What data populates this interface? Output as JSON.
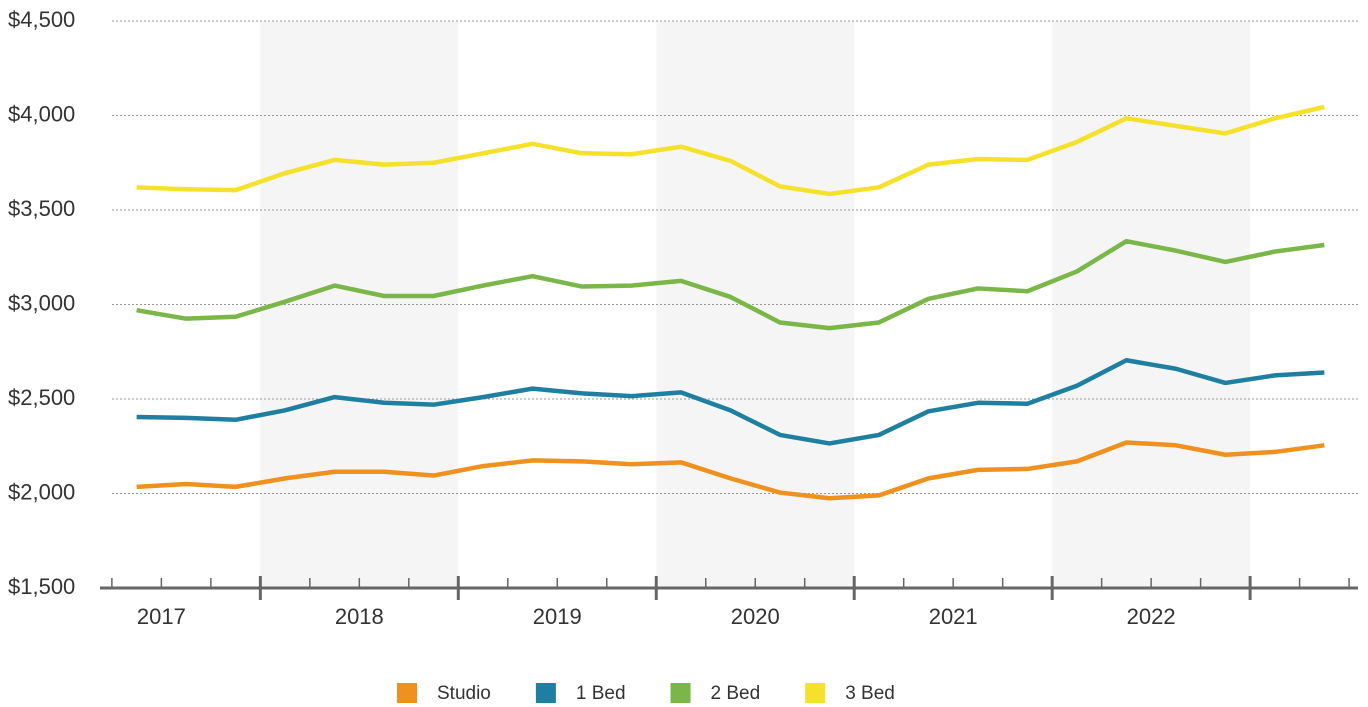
{
  "chart_data": {
    "type": "line",
    "x": [
      2017.375,
      2017.625,
      2017.875,
      2018.125,
      2018.375,
      2018.625,
      2018.875,
      2019.125,
      2019.375,
      2019.625,
      2019.875,
      2020.125,
      2020.375,
      2020.625,
      2020.875,
      2021.125,
      2021.375,
      2021.625,
      2021.875,
      2022.125,
      2022.375,
      2022.625,
      2022.875,
      2023.125,
      2023.375
    ],
    "xlim": [
      2017.19,
      2023.545
    ],
    "xticks": [
      {
        "value": 2017.5,
        "label": "2017"
      },
      {
        "value": 2018.5,
        "label": "2018"
      },
      {
        "value": 2019.5,
        "label": "2019"
      },
      {
        "value": 2020.5,
        "label": "2020"
      },
      {
        "value": 2021.5,
        "label": "2021"
      },
      {
        "value": 2022.5,
        "label": "2022"
      }
    ],
    "ylim": [
      1500,
      4500
    ],
    "yticks": [
      {
        "value": 1500,
        "label": "$1,500"
      },
      {
        "value": 2000,
        "label": "$2,000"
      },
      {
        "value": 2500,
        "label": "$2,500"
      },
      {
        "value": 3000,
        "label": "$3,000"
      },
      {
        "value": 3500,
        "label": "$3,500"
      },
      {
        "value": 4000,
        "label": "$4,000"
      },
      {
        "value": 4500,
        "label": "$4,500"
      }
    ],
    "grid": true,
    "legend": "bottom",
    "series": [
      {
        "name": "Studio",
        "color": "#f0901f",
        "values": [
          2035,
          2050,
          2035,
          2080,
          2115,
          2115,
          2095,
          2145,
          2175,
          2170,
          2155,
          2165,
          2080,
          2005,
          1975,
          1990,
          2080,
          2125,
          2130,
          2170,
          2270,
          2255,
          2205,
          2220,
          2255
        ]
      },
      {
        "name": "1 Bed",
        "color": "#1f7fa0",
        "values": [
          2405,
          2400,
          2390,
          2440,
          2510,
          2480,
          2470,
          2510,
          2555,
          2530,
          2515,
          2535,
          2440,
          2310,
          2265,
          2310,
          2435,
          2480,
          2475,
          2570,
          2705,
          2660,
          2585,
          2625,
          2640
        ]
      },
      {
        "name": "2 Bed",
        "color": "#7ab648",
        "values": [
          2970,
          2925,
          2935,
          3015,
          3100,
          3045,
          3045,
          3100,
          3150,
          3095,
          3100,
          3125,
          3040,
          2905,
          2875,
          2905,
          3030,
          3085,
          3070,
          3175,
          3335,
          3285,
          3225,
          3280,
          3315
        ]
      },
      {
        "name": "3 Bed",
        "color": "#f5e12a",
        "values": [
          3620,
          3610,
          3605,
          3695,
          3765,
          3740,
          3750,
          3800,
          3850,
          3800,
          3795,
          3835,
          3760,
          3625,
          3585,
          3620,
          3740,
          3770,
          3765,
          3860,
          3985,
          3945,
          3905,
          3985,
          4045
        ]
      }
    ]
  }
}
